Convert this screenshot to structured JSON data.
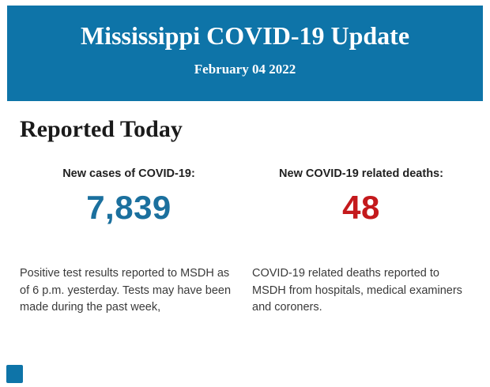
{
  "header": {
    "title": "Mississippi COVID-19 Update",
    "date": "February 04 2022",
    "background_color": "#0e74a8",
    "text_color": "#ffffff"
  },
  "section": {
    "title": "Reported Today"
  },
  "stats": {
    "cases": {
      "label": "New cases of COVID-19:",
      "value": "7,839",
      "color": "#1b709e",
      "description": "Positive test results reported to MSDH as of 6 p.m. yesterday. Tests may have been made during the past week,"
    },
    "deaths": {
      "label": "New COVID-19 related deaths:",
      "value": "48",
      "color": "#c4191c",
      "description": "COVID-19 related deaths reported to MSDH from hospitals, medical examiners and coroners."
    }
  }
}
